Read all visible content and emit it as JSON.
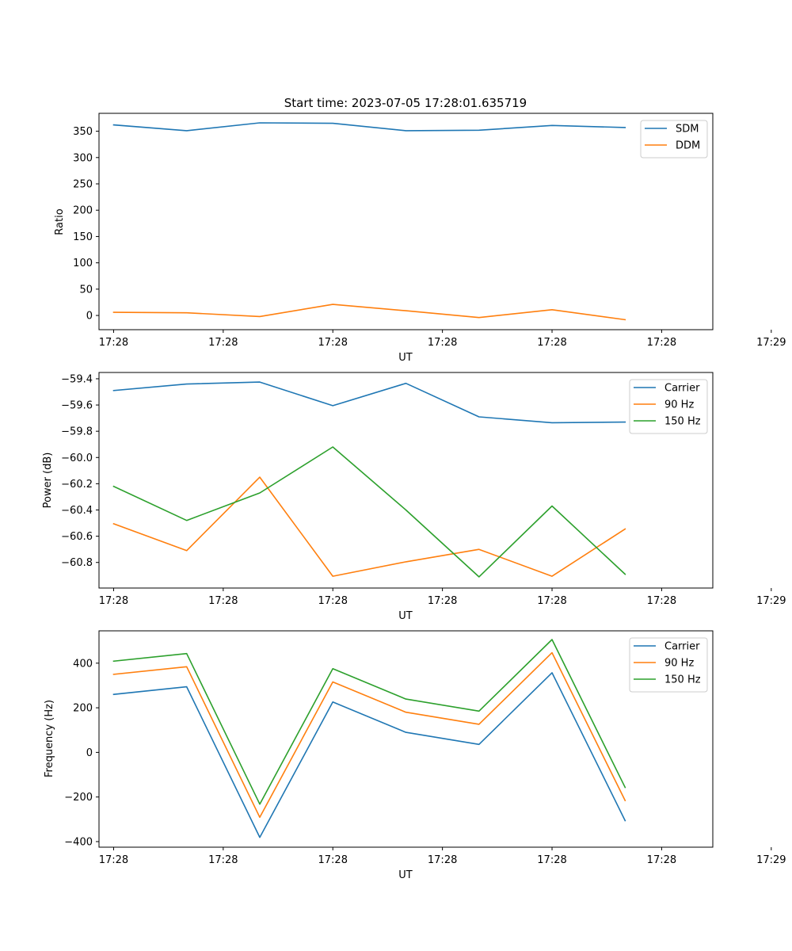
{
  "chart_data": [
    {
      "type": "line",
      "title": "Start time: 2023-07-05 17:28:01.635719",
      "xlabel": "UT",
      "ylabel": "Ratio",
      "x": [
        1,
        2,
        3,
        4,
        5,
        6,
        7,
        8
      ],
      "xlim": [
        0.8,
        9.2
      ],
      "x_ticks": [
        1,
        2.5,
        4,
        5.5,
        7,
        8.5,
        10
      ],
      "x_tick_labels": [
        "17:28",
        "17:28",
        "17:28",
        "17:28",
        "17:28",
        "17:28",
        "17:29"
      ],
      "ylim": [
        -27,
        384
      ],
      "y_ticks": [
        0,
        50,
        100,
        150,
        200,
        250,
        300,
        350
      ],
      "y_tick_labels": [
        "0",
        "50",
        "100",
        "150",
        "200",
        "250",
        "300",
        "350"
      ],
      "legend_position": "top-right",
      "series": [
        {
          "name": "SDM",
          "color": "#1f77b4",
          "values": [
            362,
            351,
            366,
            365,
            351,
            352,
            361,
            357
          ]
        },
        {
          "name": "DDM",
          "color": "#ff7f0e",
          "values": [
            6,
            5,
            -2,
            21,
            9,
            -4,
            11,
            -8
          ]
        }
      ]
    },
    {
      "type": "line",
      "title": "",
      "xlabel": "UT",
      "ylabel": "Power (dB)",
      "x": [
        1,
        2,
        3,
        4,
        5,
        6,
        7,
        8
      ],
      "xlim": [
        0.8,
        9.2
      ],
      "x_ticks": [
        1,
        2.5,
        4,
        5.5,
        7,
        8.5,
        10
      ],
      "x_tick_labels": [
        "17:28",
        "17:28",
        "17:28",
        "17:28",
        "17:28",
        "17:28",
        "17:29"
      ],
      "ylim": [
        -60.995,
        -59.352
      ],
      "y_ticks": [
        -59.4,
        -59.6,
        -59.8,
        -60.0,
        -60.2,
        -60.4,
        -60.6,
        -60.8
      ],
      "y_tick_labels": [
        "−59.4",
        "−59.6",
        "−59.8",
        "−60.0",
        "−60.2",
        "−60.4",
        "−60.6",
        "−60.8"
      ],
      "legend_position": "top-right",
      "series": [
        {
          "name": "Carrier",
          "color": "#1f77b4",
          "values": [
            -59.49,
            -59.44,
            -59.425,
            -59.605,
            -59.435,
            -59.69,
            -59.735,
            -59.73
          ]
        },
        {
          "name": "90 Hz",
          "color": "#ff7f0e",
          "values": [
            -60.505,
            -60.71,
            -60.15,
            -60.905,
            -60.795,
            -60.7,
            -60.905,
            -60.545
          ]
        },
        {
          "name": "150 Hz",
          "color": "#2ca02c",
          "values": [
            -60.22,
            -60.48,
            -60.27,
            -59.92,
            -60.4,
            -60.91,
            -60.37,
            -60.89
          ]
        }
      ]
    },
    {
      "type": "line",
      "title": "",
      "xlabel": "UT",
      "ylabel": "Frequency (Hz)",
      "x": [
        1,
        2,
        3,
        4,
        5,
        6,
        7,
        8
      ],
      "xlim": [
        0.8,
        9.2
      ],
      "x_ticks": [
        1,
        2.5,
        4,
        5.5,
        7,
        8.5,
        10
      ],
      "x_tick_labels": [
        "17:28",
        "17:28",
        "17:28",
        "17:28",
        "17:28",
        "17:28",
        "17:29"
      ],
      "ylim": [
        -425,
        545
      ],
      "y_ticks": [
        400,
        200,
        0,
        -200,
        -400
      ],
      "y_tick_labels": [
        "400",
        "200",
        "0",
        "−200",
        "−400"
      ],
      "legend_position": "top-right",
      "series": [
        {
          "name": "Carrier",
          "color": "#1f77b4",
          "values": [
            260,
            294,
            -381,
            226,
            90,
            36,
            357,
            -306
          ]
        },
        {
          "name": "90 Hz",
          "color": "#ff7f0e",
          "values": [
            350,
            384,
            -291,
            316,
            180,
            126,
            447,
            -216
          ]
        },
        {
          "name": "150 Hz",
          "color": "#2ca02c",
          "values": [
            409,
            443,
            -232,
            375,
            239,
            185,
            506,
            -157
          ]
        }
      ]
    }
  ]
}
